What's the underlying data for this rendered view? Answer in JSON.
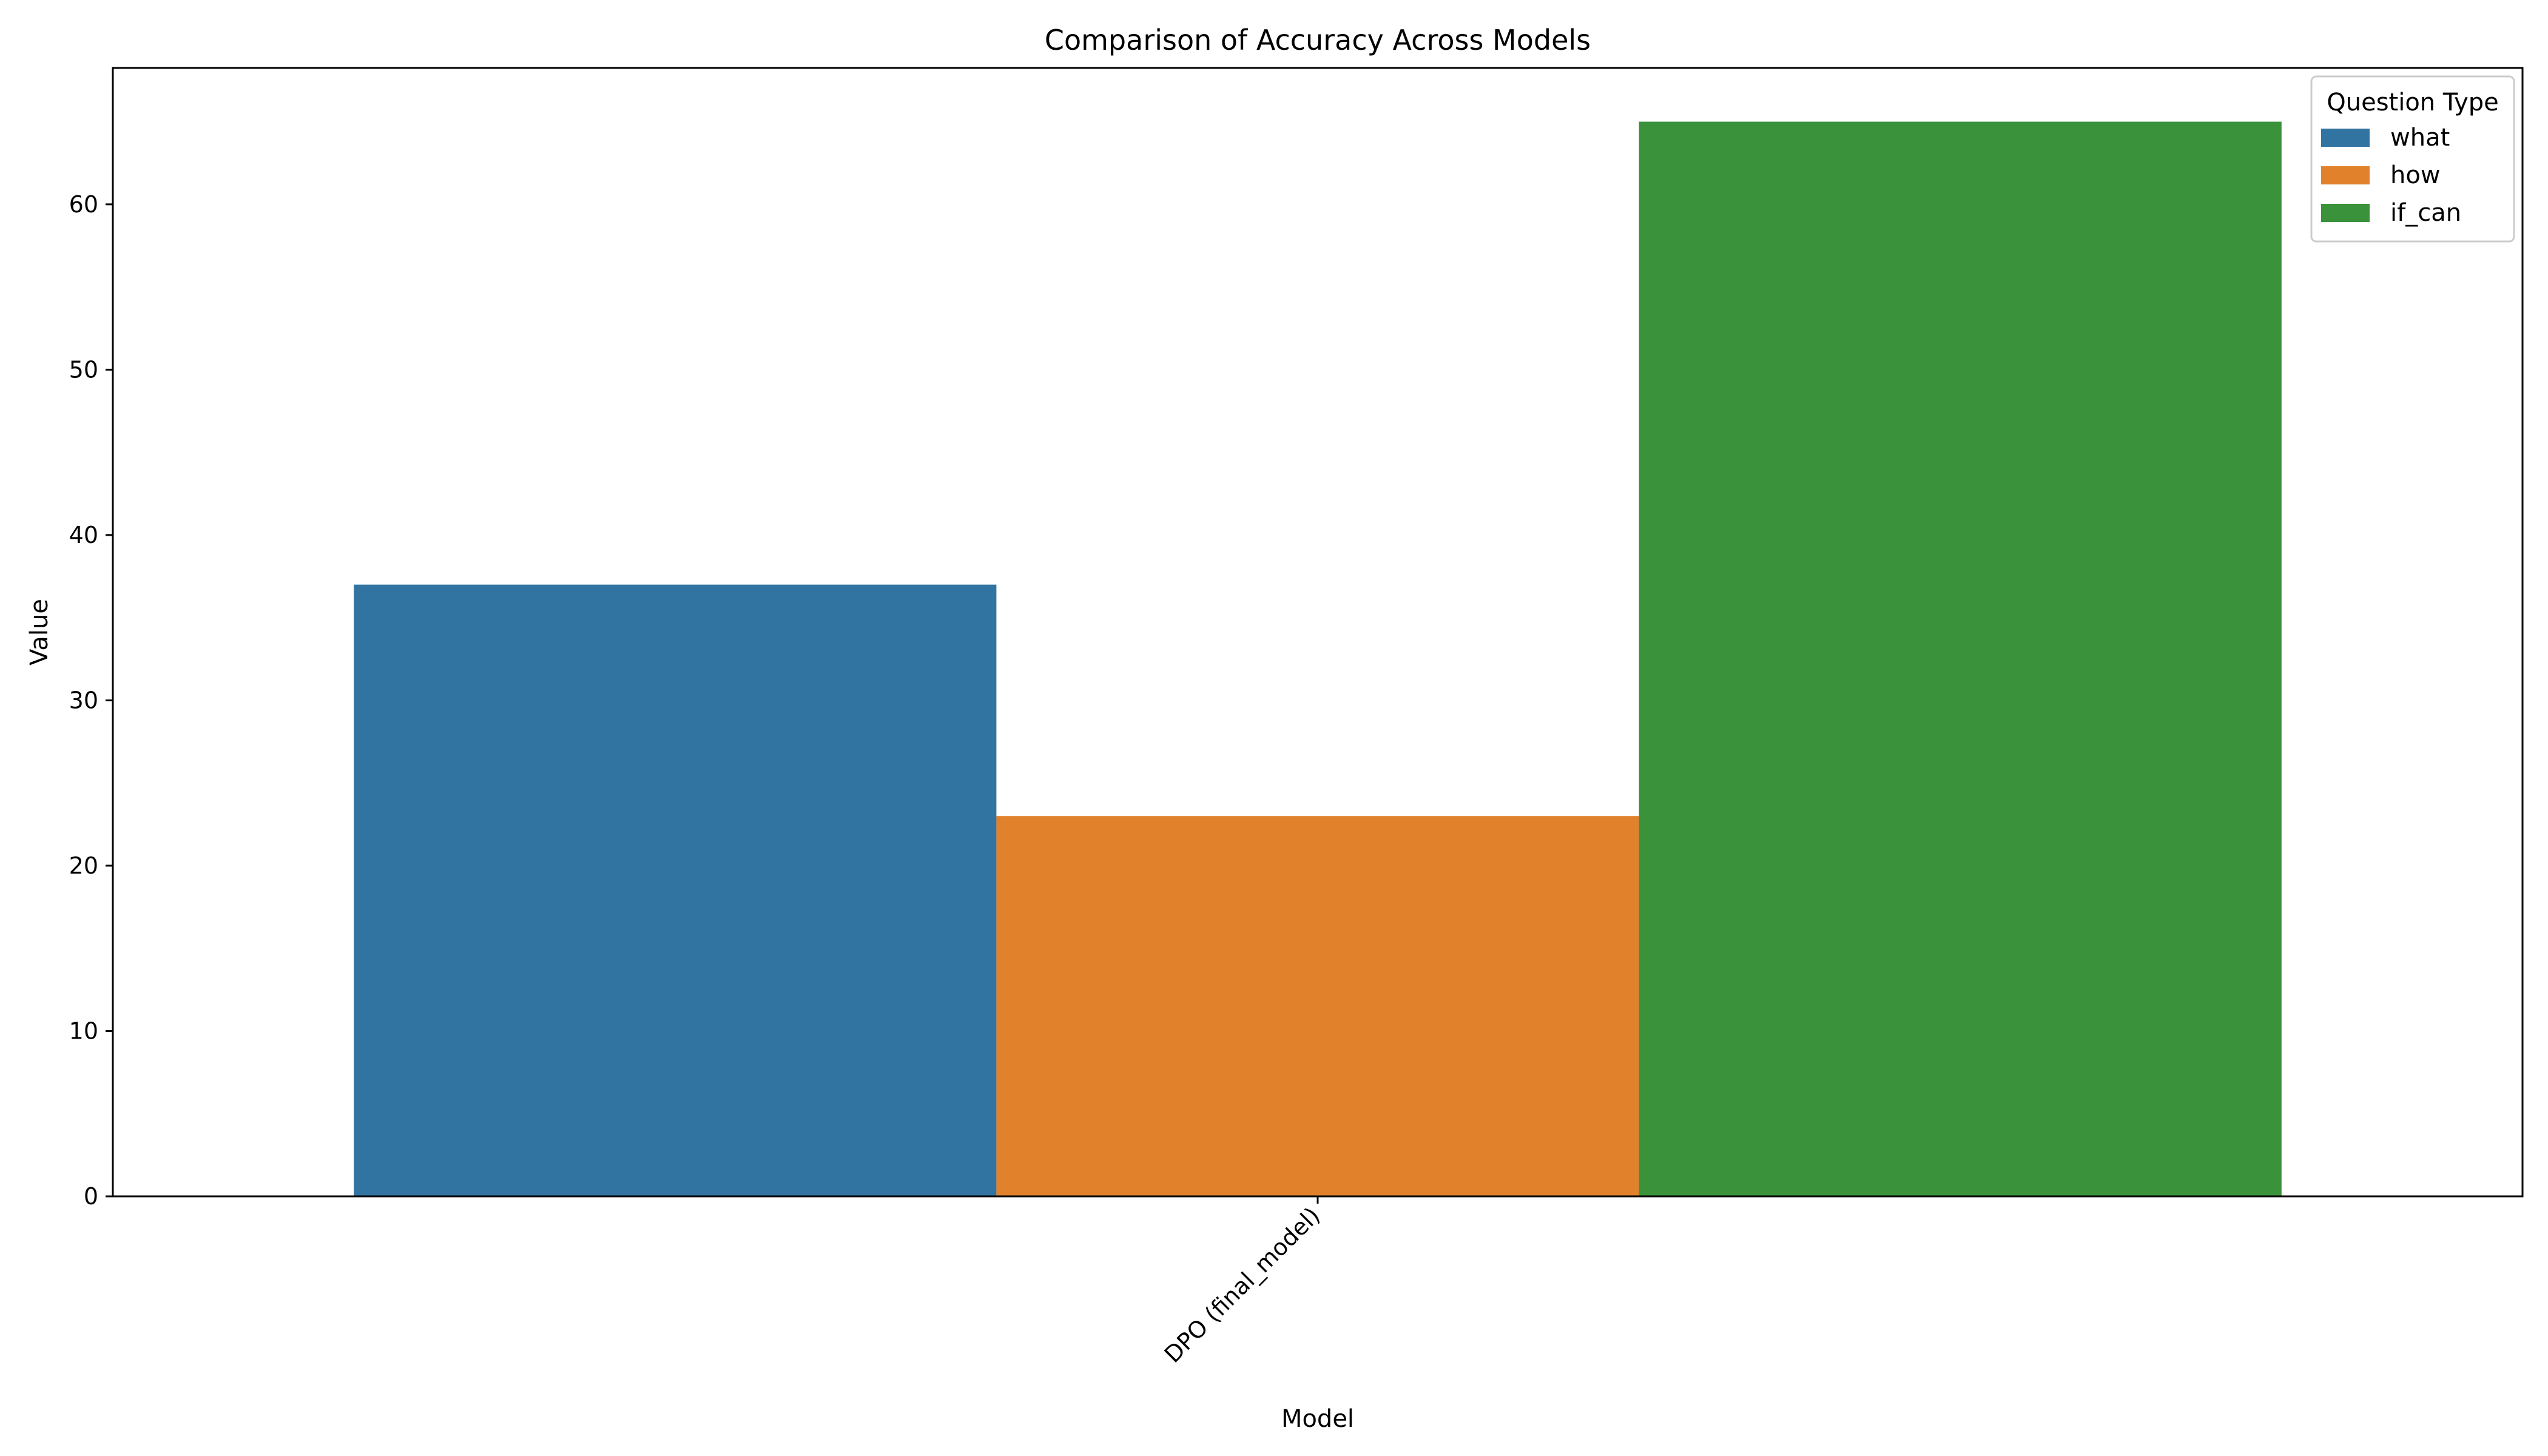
{
  "chart_data": {
    "type": "bar",
    "title": "Comparison of Accuracy Across Models",
    "xlabel": "Model",
    "ylabel": "Value",
    "categories": [
      "DPO (final_model)"
    ],
    "series": [
      {
        "name": "what",
        "values": [
          37
        ],
        "color": "#3274a1"
      },
      {
        "name": "how",
        "values": [
          23
        ],
        "color": "#e1812c"
      },
      {
        "name": "if_can",
        "values": [
          65
        ],
        "color": "#3a923a"
      }
    ],
    "ylim": [
      0,
      68.25
    ],
    "yticks": [
      0,
      10,
      20,
      30,
      40,
      50,
      60
    ],
    "x_tick_rotation_deg": 45,
    "legend": {
      "title": "Question Type",
      "placement": "top-right"
    },
    "grid": false
  }
}
